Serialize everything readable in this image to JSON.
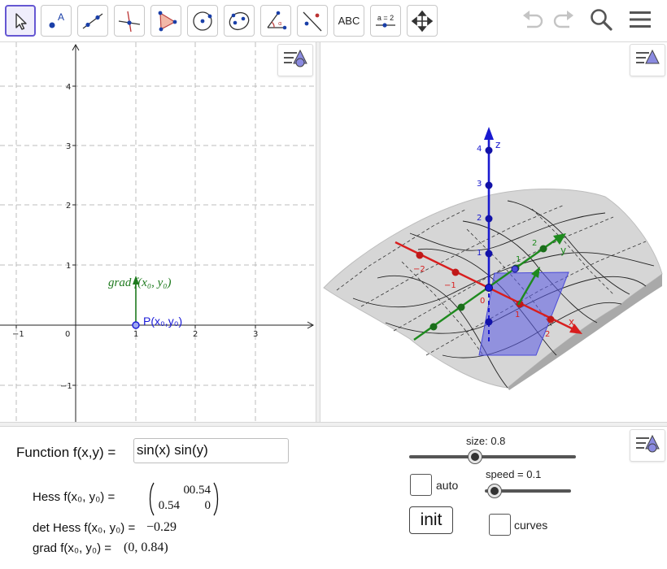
{
  "toolbar": {
    "tools": [
      {
        "name": "move-tool",
        "icon": "cursor-arrow-icon"
      },
      {
        "name": "point-tool",
        "icon": "point-icon",
        "label": "A"
      },
      {
        "name": "line-tool",
        "icon": "line-icon"
      },
      {
        "name": "perpendicular-tool",
        "icon": "perpendicular-line-icon"
      },
      {
        "name": "polygon-tool",
        "icon": "polygon-icon"
      },
      {
        "name": "circle-tool",
        "icon": "circle-icon"
      },
      {
        "name": "ellipse-tool",
        "icon": "ellipse-icon"
      },
      {
        "name": "angle-tool",
        "icon": "angle-icon"
      },
      {
        "name": "reflect-tool",
        "icon": "reflect-icon"
      },
      {
        "name": "text-tool",
        "icon": "text-icon",
        "label": "ABC"
      },
      {
        "name": "slider-tool",
        "icon": "slider-icon",
        "label": "a = 2"
      },
      {
        "name": "move-graphics-tool",
        "icon": "move-arrows-icon"
      }
    ],
    "undo_icon": "undo-icon",
    "redo_icon": "redo-icon",
    "search_icon": "search-icon",
    "menu_icon": "hamburger-menu-icon"
  },
  "graphics2d": {
    "x_ticks": [
      "−1",
      "0",
      "1",
      "2",
      "3"
    ],
    "y_ticks": [
      "4",
      "3",
      "2",
      "1",
      "−1"
    ],
    "point_label": "P(x₀,y₀)",
    "grad_label": "grad f(x₀, y₀)",
    "colors": {
      "grad": "#1e7a1e",
      "point": "#1a1ad8",
      "grid": "#b4b4b4"
    }
  },
  "graphics3d": {
    "axis_labels": {
      "x": "x",
      "y": "y",
      "z": "z"
    },
    "z_ticks": [
      "4",
      "3",
      "2",
      "1"
    ],
    "x_ticks": [
      "−2",
      "−1",
      "0",
      "1",
      "2"
    ],
    "y_ticks": [
      "1",
      "2"
    ],
    "colors": {
      "x_axis": "#d81e1e",
      "y_axis": "#1e8a1e",
      "z_axis": "#1a1ad0",
      "surface": "#cfcfcf",
      "plane": "#5a5ae6"
    }
  },
  "algebra": {
    "function_label": "Function f(x,y) =",
    "function_value": "sin(x) sin(y)",
    "hess_label": "Hess f(x₀, y₀) =",
    "hess_matrix": [
      [
        "0",
        "0.54"
      ],
      [
        "0.54",
        "0"
      ]
    ],
    "det_label": "det Hess f(x₀, y₀) =",
    "det_value": "−0.29",
    "grad_label": "grad f(x₀, y₀) =",
    "grad_value": "(0, 0.84)",
    "size_label": "size: 0.8",
    "size_value": 0.8,
    "speed_label": "speed = 0.1",
    "speed_value": 0.1,
    "auto_label": "auto",
    "init_label": "init",
    "curves_label": "curves"
  }
}
